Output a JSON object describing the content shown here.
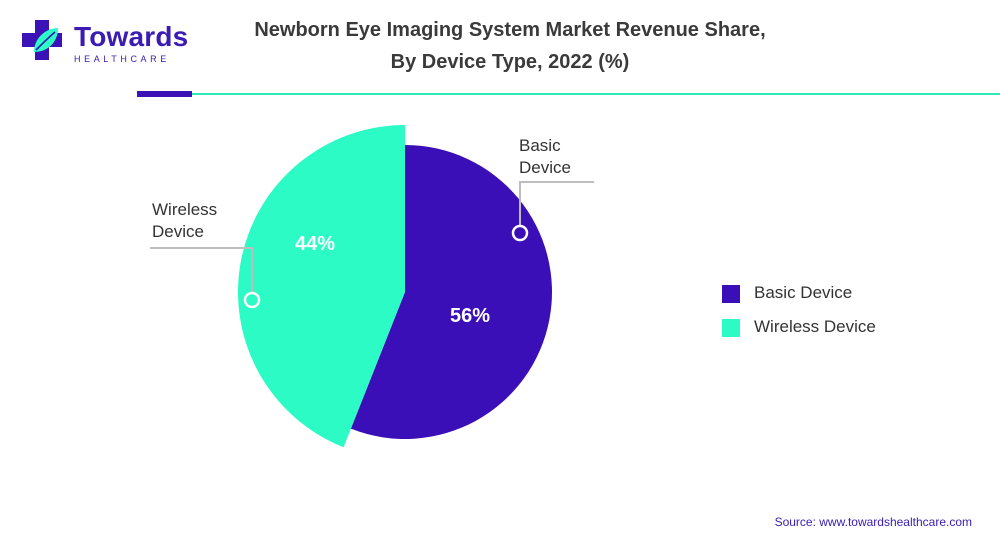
{
  "brand": {
    "name": "Towards",
    "tagline": "HEALTHCARE"
  },
  "title_lines": [
    "Newborn Eye Imaging System Market Revenue Share,",
    "By Device Type, 2022 (%)"
  ],
  "chart_data": {
    "type": "pie",
    "title": "Newborn Eye Imaging System Market Revenue Share, By Device Type, 2022 (%)",
    "categories": [
      "Basic Device",
      "Wireless Device"
    ],
    "values": [
      56,
      44
    ],
    "value_labels": [
      "56%",
      "44%"
    ],
    "callouts": [
      [
        "Basic",
        "Device"
      ],
      [
        "Wireless",
        "Device"
      ]
    ],
    "colors": [
      "#3b0fb7",
      "#2cfbc6"
    ],
    "legend_position": "right"
  },
  "legend": [
    {
      "label": "Basic Device",
      "color": "#3b0fb7"
    },
    {
      "label": "Wireless Device",
      "color": "#2cfbc6"
    }
  ],
  "source": "Source: www.towardshealthcare.com",
  "colors": {
    "accent_dark": "#3b12b6",
    "accent_light": "#2ee8b8",
    "brand": "#3b1bb4"
  }
}
